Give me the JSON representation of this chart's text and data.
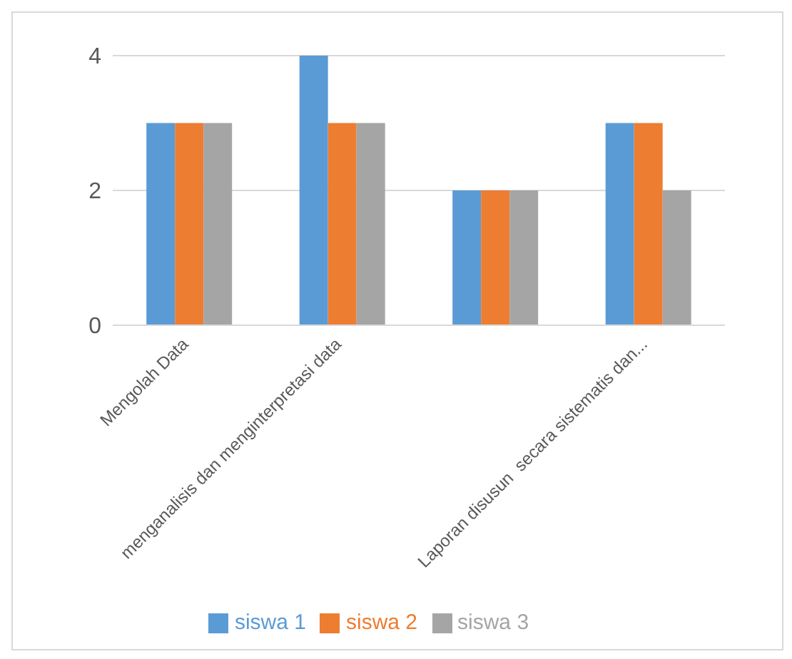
{
  "chart_data": {
    "type": "bar",
    "categories": [
      "Mengolah Data",
      "menganalisis dan menginterpretasi data",
      null,
      "Laporan disusun  secara sistematis dan..."
    ],
    "series": [
      {
        "name": "siswa 1",
        "color": "#5b9bd5",
        "values": [
          3,
          4,
          2,
          3
        ]
      },
      {
        "name": "siswa 2",
        "color": "#ed7d31",
        "values": [
          3,
          3,
          2,
          3
        ]
      },
      {
        "name": "siswa 3",
        "color": "#a5a5a5",
        "values": [
          3,
          3,
          2,
          2
        ]
      }
    ],
    "ylim": [
      0,
      4
    ],
    "yticks": [
      0,
      2,
      4
    ],
    "grid": "y",
    "legend": "bottom"
  }
}
